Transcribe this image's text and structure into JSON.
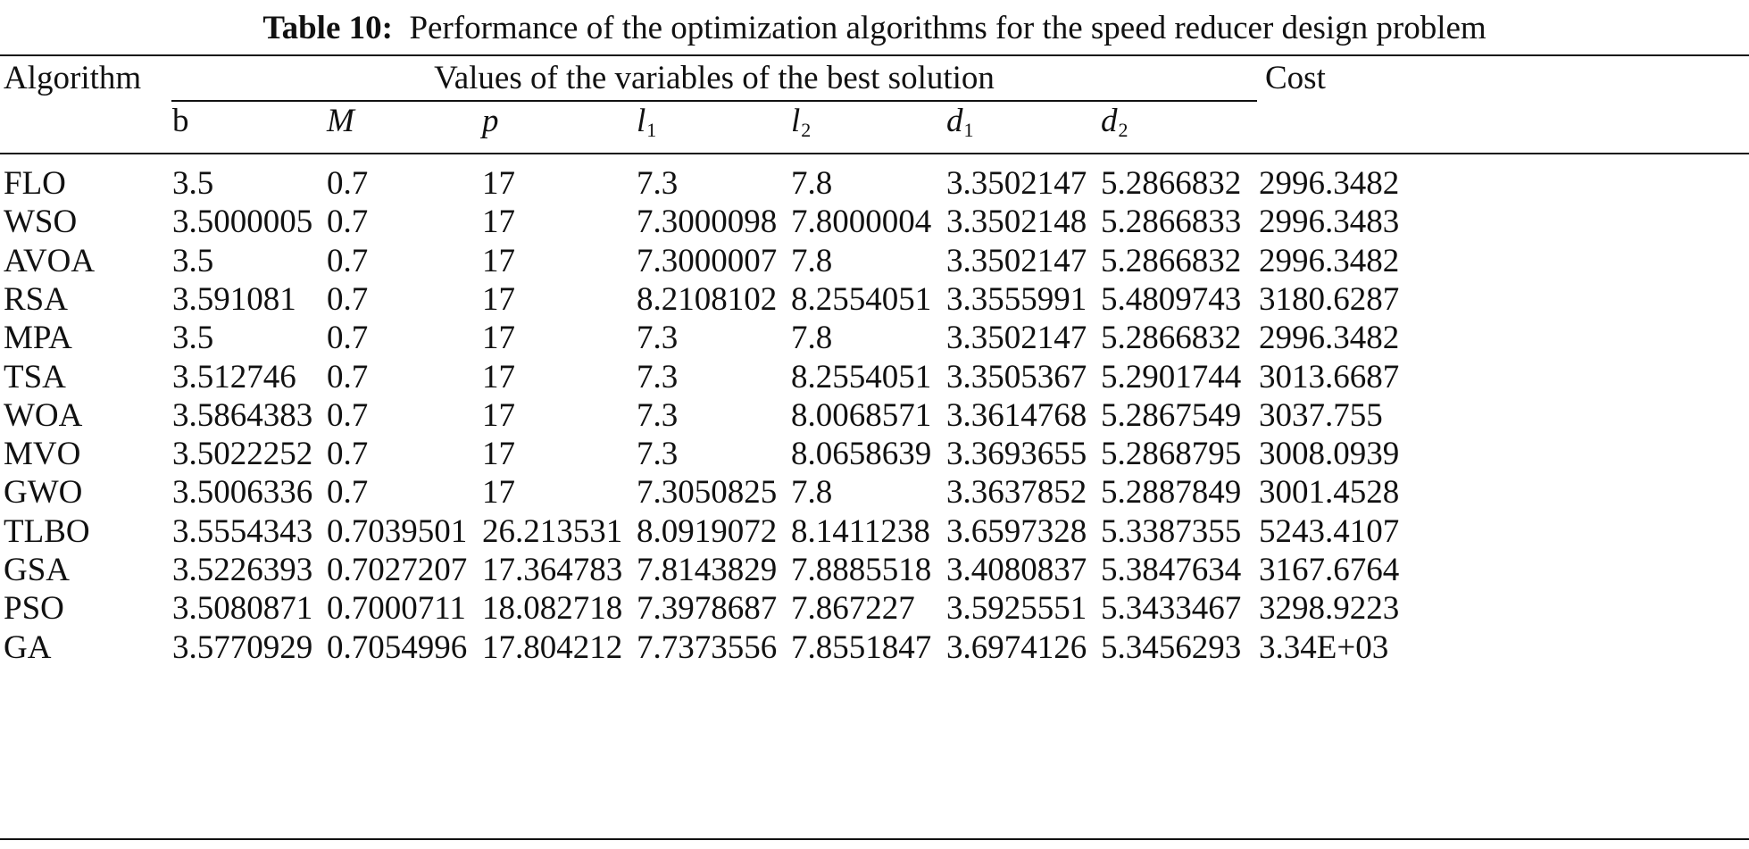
{
  "caption": {
    "label": "Table 10:",
    "text": "Performance of the optimization algorithms for the speed reducer design problem"
  },
  "header": {
    "algorithm": "Algorithm",
    "group": "Values of the variables of the best solution",
    "cost": "Cost",
    "variables": [
      {
        "symbol": "b",
        "italic": false,
        "sub": ""
      },
      {
        "symbol": "M",
        "italic": true,
        "sub": ""
      },
      {
        "symbol": "p",
        "italic": true,
        "sub": ""
      },
      {
        "symbol": "l",
        "italic": true,
        "sub": "1"
      },
      {
        "symbol": "l",
        "italic": true,
        "sub": "2"
      },
      {
        "symbol": "d",
        "italic": true,
        "sub": "1"
      },
      {
        "symbol": "d",
        "italic": true,
        "sub": "2"
      }
    ]
  },
  "rows": [
    {
      "algorithm": "FLO",
      "values": [
        "3.5",
        "0.7",
        "17",
        "7.3",
        "7.8",
        "3.3502147",
        "5.2866832"
      ],
      "cost": "2996.3482"
    },
    {
      "algorithm": "WSO",
      "values": [
        "3.5000005",
        "0.7",
        "17",
        "7.3000098",
        "7.8000004",
        "3.3502148",
        "5.2866833"
      ],
      "cost": "2996.3483"
    },
    {
      "algorithm": "AVOA",
      "values": [
        "3.5",
        "0.7",
        "17",
        "7.3000007",
        "7.8",
        "3.3502147",
        "5.2866832"
      ],
      "cost": "2996.3482"
    },
    {
      "algorithm": "RSA",
      "values": [
        "3.591081",
        "0.7",
        "17",
        "8.2108102",
        "8.2554051",
        "3.3555991",
        "5.4809743"
      ],
      "cost": "3180.6287"
    },
    {
      "algorithm": "MPA",
      "values": [
        "3.5",
        "0.7",
        "17",
        "7.3",
        "7.8",
        "3.3502147",
        "5.2866832"
      ],
      "cost": "2996.3482"
    },
    {
      "algorithm": "TSA",
      "values": [
        "3.512746",
        "0.7",
        "17",
        "7.3",
        "8.2554051",
        "3.3505367",
        "5.2901744"
      ],
      "cost": "3013.6687"
    },
    {
      "algorithm": "WOA",
      "values": [
        "3.5864383",
        "0.7",
        "17",
        "7.3",
        "8.0068571",
        "3.3614768",
        "5.2867549"
      ],
      "cost": "3037.755"
    },
    {
      "algorithm": "MVO",
      "values": [
        "3.5022252",
        "0.7",
        "17",
        "7.3",
        "8.0658639",
        "3.3693655",
        "5.2868795"
      ],
      "cost": "3008.0939"
    },
    {
      "algorithm": "GWO",
      "values": [
        "3.5006336",
        "0.7",
        "17",
        "7.3050825",
        "7.8",
        "3.3637852",
        "5.2887849"
      ],
      "cost": "3001.4528"
    },
    {
      "algorithm": "TLBO",
      "values": [
        "3.5554343",
        "0.7039501",
        "26.213531",
        "8.0919072",
        "8.1411238",
        "3.6597328",
        "5.3387355"
      ],
      "cost": "5243.4107"
    },
    {
      "algorithm": "GSA",
      "values": [
        "3.5226393",
        "0.7027207",
        "17.364783",
        "7.8143829",
        "7.8885518",
        "3.4080837",
        "5.3847634"
      ],
      "cost": "3167.6764"
    },
    {
      "algorithm": "PSO",
      "values": [
        "3.5080871",
        "0.7000711",
        "18.082718",
        "7.3978687",
        "7.867227",
        "3.5925551",
        "5.3433467"
      ],
      "cost": "3298.9223"
    },
    {
      "algorithm": "GA",
      "values": [
        "3.5770929",
        "0.7054996",
        "17.804212",
        "7.7373556",
        "7.8551847",
        "3.6974126",
        "5.3456293"
      ],
      "cost": "3.34E+03"
    }
  ]
}
